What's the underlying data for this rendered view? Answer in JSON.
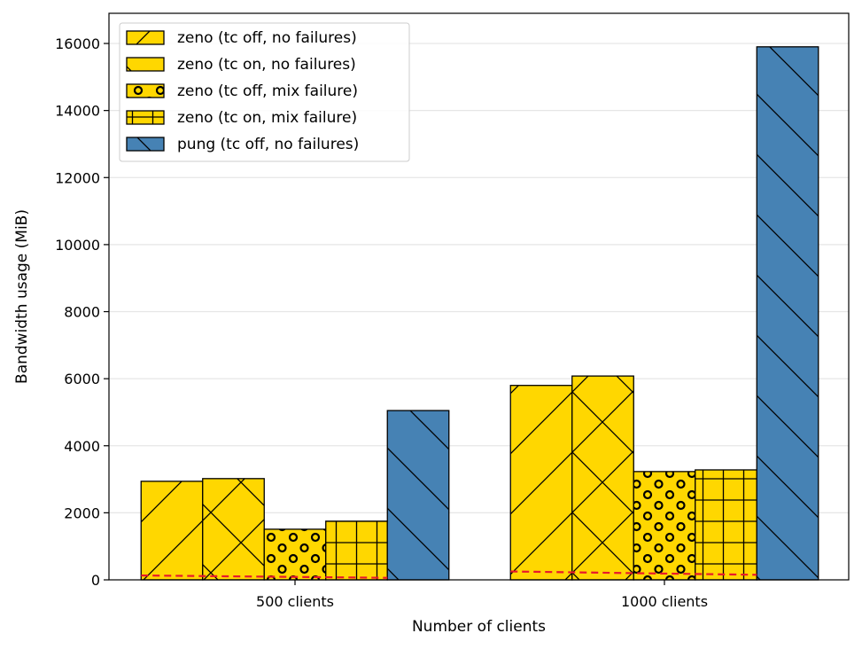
{
  "chart_data": {
    "type": "bar",
    "title": "",
    "xlabel": "Number of clients",
    "ylabel": "Bandwidth usage (MiB)",
    "categories": [
      "500 clients",
      "1000 clients"
    ],
    "ylim": [
      0,
      16900
    ],
    "yticks": [
      0,
      2000,
      4000,
      6000,
      8000,
      10000,
      12000,
      14000,
      16000
    ],
    "grid": "y",
    "legend_position": "top-left",
    "series": [
      {
        "name": "zeno (tc off, no failures)",
        "values": [
          2940,
          5800
        ],
        "color": "#FFD700",
        "hatch": "diagonal-forward"
      },
      {
        "name": "zeno (tc on, no failures)",
        "values": [
          3020,
          6080
        ],
        "color": "#FFD700",
        "hatch": "cross-diagonal"
      },
      {
        "name": "zeno (tc off, mix failure)",
        "values": [
          1510,
          3230
        ],
        "color": "#FFD700",
        "hatch": "circles"
      },
      {
        "name": "zeno (tc on, mix failure)",
        "values": [
          1750,
          3280
        ],
        "color": "#FFD700",
        "hatch": "grid"
      },
      {
        "name": "pung (tc off, no failures)",
        "values": [
          5050,
          15900
        ],
        "color": "#4682B4",
        "hatch": "diagonal-back"
      }
    ],
    "reference_lines": [
      {
        "category": "500 clients",
        "y_start": 130,
        "y_end": 60,
        "color": "#E8192C",
        "style": "dashed"
      },
      {
        "category": "1000 clients",
        "y_start": 250,
        "y_end": 150,
        "color": "#E8192C",
        "style": "dashed"
      }
    ]
  }
}
